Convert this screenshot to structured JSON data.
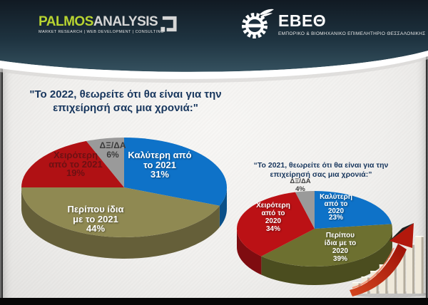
{
  "header": {
    "palmos_logo": {
      "name": "PALMOS",
      "suffix": "ANALYSIS",
      "tagline": "MARKET RESEARCH | WEB DEVELOPMENT | CONSULTING",
      "mark_icon": "open-square-logo-mark",
      "accent_color": "#b8d431"
    },
    "ebeth_logo": {
      "name": "ΕΒΕΘ",
      "subtitle": "ΕΜΠΟΡΙΚΟ & ΒΙΟΜΗΧΑΝΙΚΟ ΕΠΙΜΕΛΗΤΗΡΙΟ ΘΕΣΣΑΛΟΝΙΚΗΣ",
      "mark_icon": "winged-gear-icon"
    }
  },
  "colors": {
    "banner_top": "#111a23",
    "banner_bottom": "#35515f",
    "title_navy": "#17365d",
    "blue": "#0e72c8",
    "red_2022": "#b01114",
    "red_2021": "#bb1115",
    "olive_2022": "#8f8952",
    "olive_2021": "#6d7030",
    "gray": "#9a9a9a"
  },
  "decor": {
    "growth_icon": "rising-red-arrow-over-bar-steps"
  },
  "chart_data": [
    {
      "type": "pie",
      "title": "\"Το 2022, θεωρείτε ότι θα είναι για την\nεπιχείρησή σας μια χρονιά:\"",
      "slices": [
        {
          "label": "Καλύτερη από το 2021",
          "value": 31,
          "color": "#0e72c8",
          "side_color": "#0a5088",
          "label_color": "#ffffff",
          "label_lines": [
            "Καλύτερη από",
            "το 2021",
            "31%"
          ]
        },
        {
          "label": "Περίπου ίδια με το 2021",
          "value": 44,
          "color": "#8f8952",
          "side_color": "#655f39",
          "label_color": "#ffffff",
          "label_lines": [
            "Περίπου ίδια",
            "με το 2021",
            "44%"
          ]
        },
        {
          "label": "Χειρότερη από το 2021",
          "value": 19,
          "color": "#b01114",
          "side_color": "#780b0e",
          "label_color": "#6d1113",
          "label_lines": [
            "Χειρότερη",
            "από το 2021",
            "19%"
          ]
        },
        {
          "label": "ΔΞ/ΔΑ",
          "value": 6,
          "color": "#9a9a9a",
          "side_color": "#6d6d6d",
          "label_color": "#3b3b3b",
          "label_lines": [
            "ΔΞ/ΔΑ",
            "6%"
          ]
        }
      ],
      "start_angle": "12-oclock",
      "direction": "clockwise"
    },
    {
      "type": "pie",
      "title": "“Το 2021, θεωρείτε ότι θα είναι για την\nεπιχείρησή σας μια χρονιά:”",
      "slices": [
        {
          "label": "Καλύτερη από το 2020",
          "value": 23,
          "color": "#0e72c8",
          "side_color": "#0a5088",
          "label_color": "#ffffff",
          "label_lines": [
            "Καλύτερη",
            "από το",
            "2020",
            "23%"
          ]
        },
        {
          "label": "Περίπου ίδια με το 2020",
          "value": 39,
          "color": "#6d7030",
          "side_color": "#4b4d1f",
          "label_color": "#ffffff",
          "label_lines": [
            "Περίπου",
            "ίδια με το",
            "2020",
            "39%"
          ]
        },
        {
          "label": "Χειρότερη από το 2020",
          "value": 34,
          "color": "#bb1115",
          "side_color": "#7f0c10",
          "label_color": "#ffffff",
          "label_lines": [
            "Χειρότερη",
            "από το",
            "2020",
            "34%"
          ]
        },
        {
          "label": "ΔΞ/ΔΑ",
          "value": 4,
          "color": "#9a9a9a",
          "side_color": "#6d6d6d",
          "label_color": "#3f3f3f",
          "label_lines": [
            "ΔΞ/ΔΑ",
            "4%"
          ]
        }
      ],
      "start_angle": "12-oclock",
      "direction": "clockwise"
    }
  ]
}
